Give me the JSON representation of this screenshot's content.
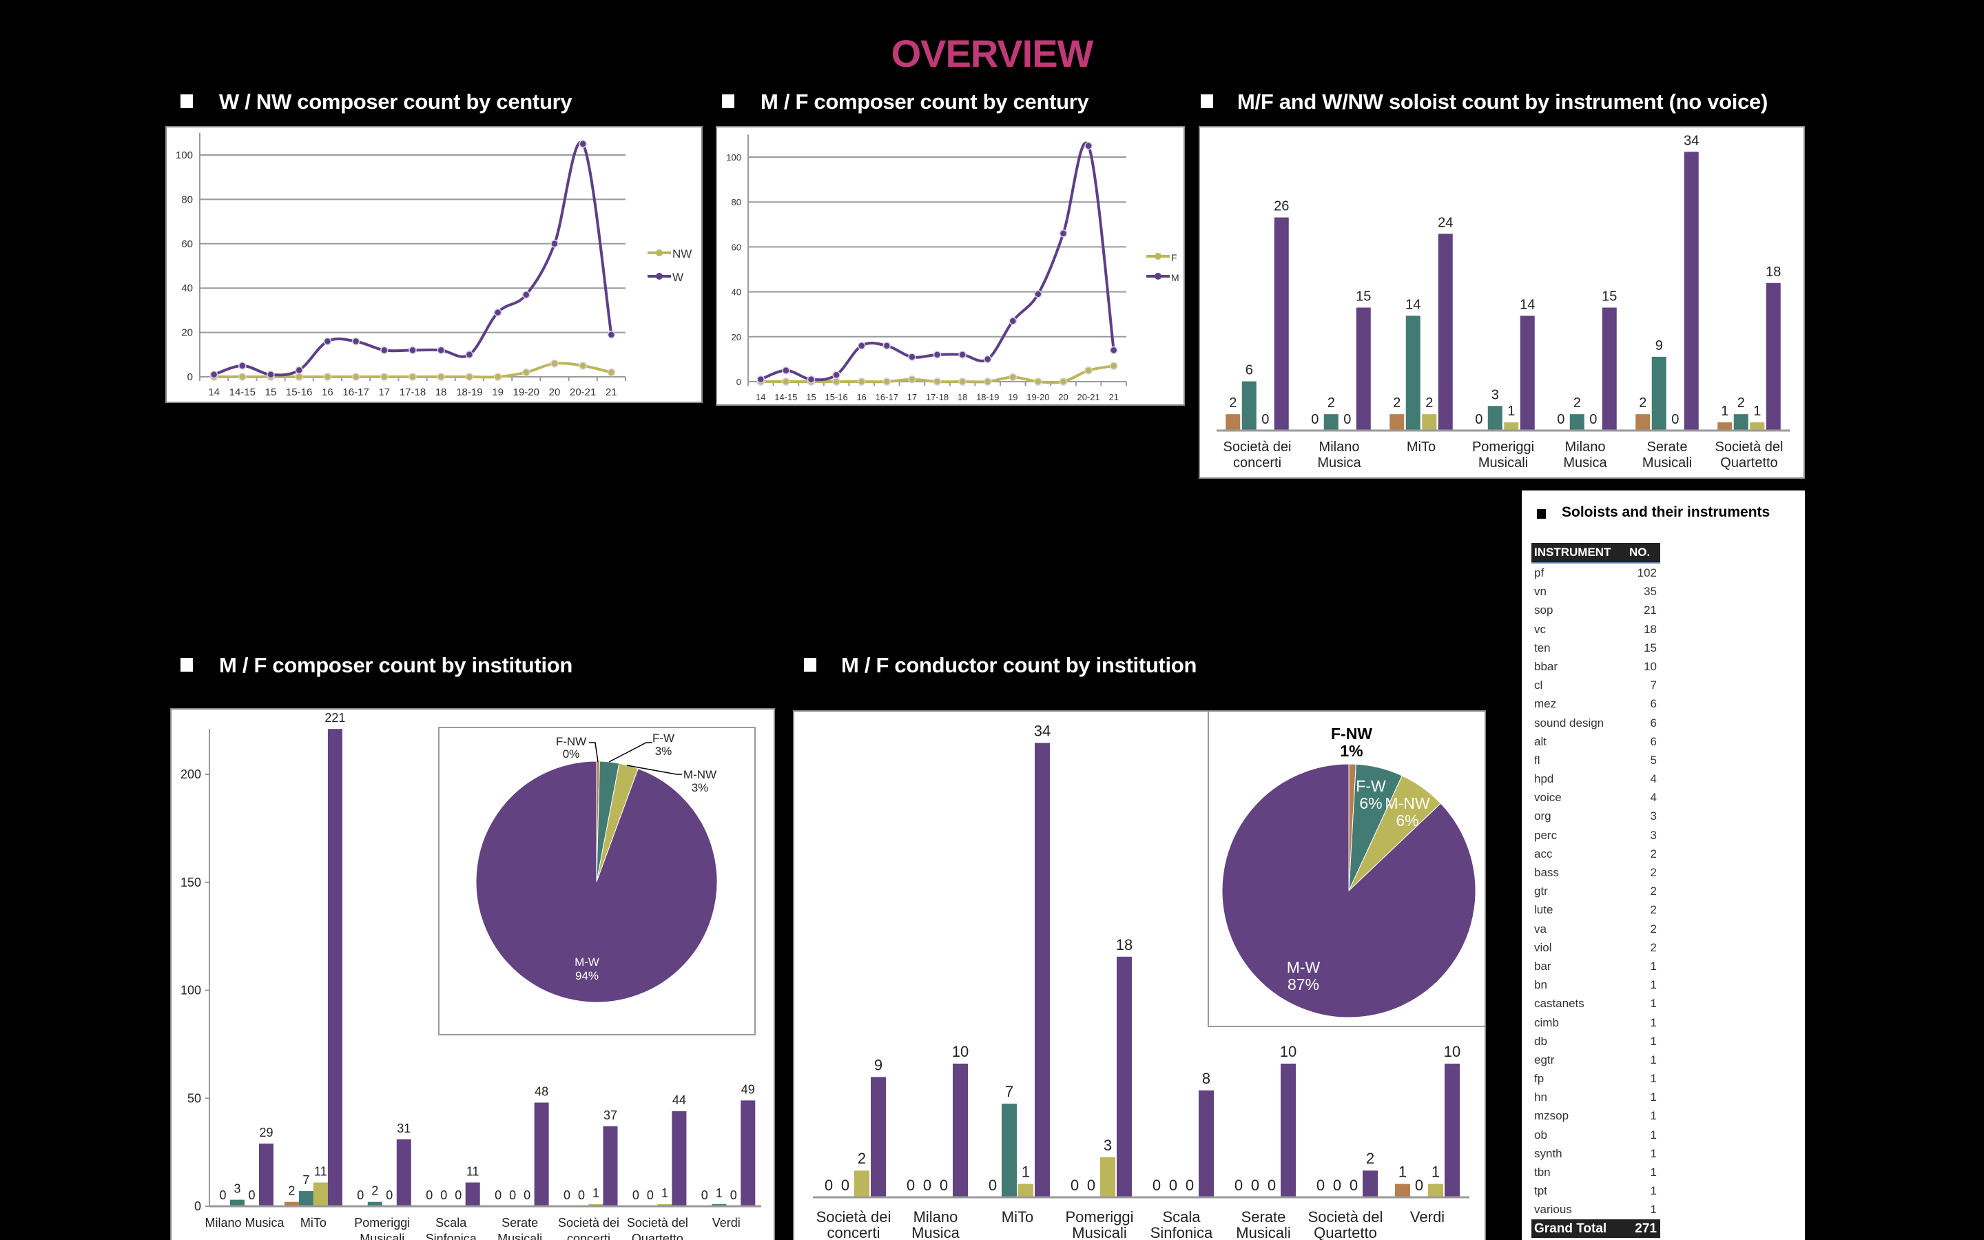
{
  "page": {
    "title": "OVERVIEW",
    "title_color": "#c03a78"
  },
  "sections": [
    {
      "heading": "W / NW composer count by century"
    },
    {
      "heading": "M / F composer count by century"
    },
    {
      "heading": "M/F and W/NW soloist count by instrument (no voice)"
    },
    {
      "heading": "M / F composer count by institution"
    },
    {
      "heading": "M / F conductor count by institution"
    }
  ],
  "colors": {
    "f_nw": "#b57f50",
    "f_w": "#417b73",
    "m_nw": "#bcb65a",
    "m_w": "#624281",
    "line_purple": "#5e3f87",
    "line_olive": "#bcb65a"
  },
  "chart_data": [
    {
      "type": "line",
      "categories": [
        "14",
        "14-15",
        "15",
        "15-16",
        "16",
        "16-17",
        "17",
        "17-18",
        "18",
        "18-19",
        "19",
        "19-20",
        "20",
        "20-21",
        "21"
      ],
      "yticks": [
        0,
        20,
        40,
        60,
        80,
        100
      ],
      "ylim": [
        0,
        110
      ],
      "grid": true,
      "legend": "right",
      "series": [
        {
          "name": "NW",
          "color": "#bcb65a",
          "values": [
            0,
            0,
            0,
            0,
            0,
            0,
            0,
            0,
            0,
            0,
            0,
            2,
            6,
            5,
            2
          ]
        },
        {
          "name": "W",
          "color": "#5e3f87",
          "values": [
            1,
            5,
            1,
            3,
            16,
            16,
            12,
            12,
            12,
            10,
            29,
            37,
            60,
            105,
            19
          ]
        }
      ]
    },
    {
      "type": "line",
      "categories": [
        "14",
        "14-15",
        "15",
        "15-16",
        "16",
        "16-17",
        "17",
        "17-18",
        "18",
        "18-19",
        "19",
        "19-20",
        "20",
        "20-21",
        "21"
      ],
      "yticks": [
        0,
        20,
        40,
        60,
        80,
        100
      ],
      "ylim": [
        0,
        110
      ],
      "grid": true,
      "legend": "right",
      "series": [
        {
          "name": "F",
          "color": "#bcb65a",
          "values": [
            0,
            0,
            0,
            0,
            0,
            0,
            1,
            0,
            0,
            0,
            2,
            0,
            0,
            5,
            7
          ]
        },
        {
          "name": "M",
          "color": "#5e3f87",
          "values": [
            1,
            5,
            1,
            3,
            16,
            16,
            11,
            12,
            12,
            10,
            27,
            39,
            66,
            105,
            14
          ]
        }
      ]
    },
    {
      "type": "bar",
      "categories": [
        "Società dei concerti",
        "Milano Musica",
        "MiTo",
        "Pomeriggi Musicali",
        "Milano Musica",
        "Serate Musicali",
        "Società del Quartetto"
      ],
      "series": [
        {
          "color": "#b57f50",
          "values": [
            2,
            0,
            2,
            0,
            0,
            2,
            1
          ]
        },
        {
          "color": "#417b73",
          "values": [
            6,
            2,
            14,
            3,
            2,
            9,
            2
          ]
        },
        {
          "color": "#bcb65a",
          "values": [
            0,
            0,
            2,
            1,
            0,
            0,
            1
          ]
        },
        {
          "color": "#624281",
          "values": [
            26,
            15,
            24,
            14,
            15,
            34,
            18
          ]
        }
      ],
      "ylim": [
        0,
        34
      ],
      "grid": false
    },
    {
      "type": "bar",
      "categories": [
        "Milano Musica",
        "MiTo",
        "Pomeriggi Musicali",
        "Scala Sinfonica",
        "Serate Musicali",
        "Società dei concerti",
        "Società del Quartetto",
        "Verdi"
      ],
      "series": [
        {
          "color": "#b57f50",
          "values": [
            0,
            2,
            0,
            0,
            0,
            0,
            0,
            0
          ]
        },
        {
          "color": "#417b73",
          "values": [
            3,
            7,
            2,
            0,
            0,
            0,
            0,
            1
          ]
        },
        {
          "color": "#bcb65a",
          "values": [
            0,
            11,
            0,
            0,
            0,
            1,
            1,
            0
          ]
        },
        {
          "color": "#624281",
          "values": [
            29,
            221,
            31,
            11,
            48,
            37,
            44,
            49
          ]
        }
      ],
      "yticks": [
        0,
        50,
        100,
        150,
        200
      ],
      "ylim": [
        0,
        221
      ],
      "grid": false
    },
    {
      "type": "pie",
      "slices": [
        {
          "label": "F-NW",
          "pct_label": "0%",
          "value": 0.4,
          "color": "#b57f50"
        },
        {
          "label": "F-W",
          "pct_label": "3%",
          "value": 2.6,
          "color": "#417b73"
        },
        {
          "label": "M-NW",
          "pct_label": "3%",
          "value": 2.6,
          "color": "#bcb65a"
        },
        {
          "label": "M-W",
          "pct_label": "94%",
          "value": 94.4,
          "color": "#624281"
        }
      ]
    },
    {
      "type": "bar",
      "categories": [
        "Società dei concerti",
        "Milano Musica",
        "MiTo",
        "Pomeriggi Musicali",
        "Scala Sinfonica",
        "Serate Musicali",
        "Società del Quartetto",
        "Verdi"
      ],
      "series": [
        {
          "color": "#b57f50",
          "values": [
            0,
            0,
            0,
            0,
            0,
            0,
            0,
            1
          ]
        },
        {
          "color": "#417b73",
          "values": [
            0,
            0,
            7,
            0,
            0,
            0,
            0,
            0
          ]
        },
        {
          "color": "#bcb65a",
          "values": [
            2,
            0,
            1,
            3,
            0,
            0,
            0,
            1
          ]
        },
        {
          "color": "#624281",
          "values": [
            9,
            10,
            34,
            18,
            8,
            10,
            2,
            10
          ]
        }
      ],
      "ylim": [
        0,
        34
      ],
      "grid": false
    },
    {
      "type": "pie",
      "slices": [
        {
          "label": "F-NW",
          "pct_label": "1%",
          "value": 0.9,
          "color": "#b57f50"
        },
        {
          "label": "F-W",
          "pct_label": "6%",
          "value": 6,
          "color": "#417b73"
        },
        {
          "label": "M-NW",
          "pct_label": "6%",
          "value": 6,
          "color": "#bcb65a"
        },
        {
          "label": "M-W",
          "pct_label": "87%",
          "value": 87.1,
          "color": "#624281"
        }
      ]
    }
  ],
  "table": {
    "title": "Soloists and their instruments",
    "headers": [
      "INSTRUMENT",
      "NO."
    ],
    "rows": [
      [
        "pf",
        "102"
      ],
      [
        "vn",
        "35"
      ],
      [
        "sop",
        "21"
      ],
      [
        "vc",
        "18"
      ],
      [
        "ten",
        "15"
      ],
      [
        "bbar",
        "10"
      ],
      [
        "cl",
        "7"
      ],
      [
        "mez",
        "6"
      ],
      [
        "sound design",
        "6"
      ],
      [
        "alt",
        "6"
      ],
      [
        "fl",
        "5"
      ],
      [
        "hpd",
        "4"
      ],
      [
        "voice",
        "4"
      ],
      [
        "org",
        "3"
      ],
      [
        "perc",
        "3"
      ],
      [
        "acc",
        "2"
      ],
      [
        "bass",
        "2"
      ],
      [
        "gtr",
        "2"
      ],
      [
        "lute",
        "2"
      ],
      [
        "va",
        "2"
      ],
      [
        "viol",
        "2"
      ],
      [
        "bar",
        "1"
      ],
      [
        "bn",
        "1"
      ],
      [
        "castanets",
        "1"
      ],
      [
        "cimb",
        "1"
      ],
      [
        "db",
        "1"
      ],
      [
        "egtr",
        "1"
      ],
      [
        "fp",
        "1"
      ],
      [
        "hn",
        "1"
      ],
      [
        "mzsop",
        "1"
      ],
      [
        "ob",
        "1"
      ],
      [
        "synth",
        "1"
      ],
      [
        "tbn",
        "1"
      ],
      [
        "tpt",
        "1"
      ],
      [
        "various",
        "1"
      ]
    ],
    "total_label": "Grand Total",
    "total": "271"
  }
}
